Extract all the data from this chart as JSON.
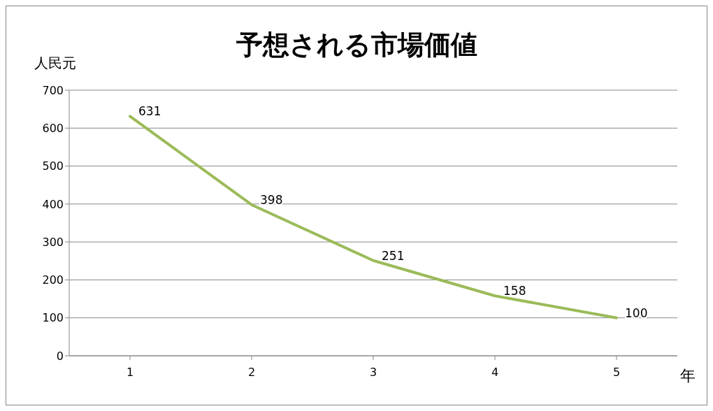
{
  "chart_data": {
    "type": "line",
    "title": "予想される市場価値",
    "ylabel": "人民元",
    "xlabel": "年",
    "categories": [
      "1",
      "2",
      "3",
      "4",
      "5"
    ],
    "values": [
      631,
      398,
      251,
      158,
      100
    ],
    "color": "#9bbb59",
    "ylim": [
      0,
      700
    ],
    "yticks": [
      0,
      100,
      200,
      300,
      400,
      500,
      600,
      700
    ],
    "grid": "y",
    "data_labels": true
  }
}
